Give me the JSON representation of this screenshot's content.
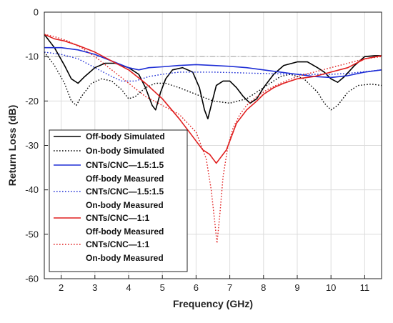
{
  "chart_data": {
    "type": "line",
    "title": "",
    "xlabel": "Frequency (GHz)",
    "ylabel": "Return Loss (dB)",
    "xlim": [
      1.5,
      11.5
    ],
    "ylim": [
      -60,
      0
    ],
    "x_ticks": [
      2,
      3,
      4,
      5,
      6,
      7,
      8,
      9,
      10,
      11
    ],
    "y_ticks": [
      0,
      -10,
      -20,
      -30,
      -40,
      -50,
      -60
    ],
    "grid": true,
    "legend_position": "left-center",
    "reference_line": {
      "y": -10,
      "style": "dash-dot",
      "color": "#aaaaaa"
    },
    "series": [
      {
        "name": "Off-body Simulated",
        "color": "#000000",
        "style": "solid",
        "x": [
          1.5,
          1.8,
          2.1,
          2.3,
          2.5,
          2.7,
          3.0,
          3.3,
          3.6,
          4.0,
          4.3,
          4.5,
          4.7,
          4.8,
          4.95,
          5.1,
          5.3,
          5.6,
          5.9,
          6.1,
          6.25,
          6.35,
          6.45,
          6.6,
          6.8,
          7.0,
          7.2,
          7.4,
          7.6,
          7.8,
          8.0,
          8.3,
          8.6,
          9.0,
          9.3,
          9.6,
          9.8,
          10.0,
          10.2,
          10.4,
          10.7,
          11.0,
          11.3,
          11.5
        ],
        "values": [
          -5,
          -8,
          -12,
          -15,
          -16,
          -14.5,
          -12.5,
          -11.5,
          -11.5,
          -12.5,
          -14,
          -17,
          -21,
          -22,
          -18,
          -15,
          -13,
          -12.5,
          -13.5,
          -17,
          -22,
          -24,
          -21,
          -16.5,
          -15.5,
          -15.5,
          -17,
          -19,
          -20.5,
          -19.5,
          -17,
          -14,
          -12,
          -11.2,
          -11.2,
          -12.5,
          -13.5,
          -15,
          -15.8,
          -14.5,
          -12,
          -10,
          -9.8,
          -9.8
        ]
      },
      {
        "name": "On-body Simulated",
        "color": "#000000",
        "style": "dotted",
        "x": [
          1.5,
          1.8,
          2.1,
          2.3,
          2.45,
          2.6,
          2.9,
          3.2,
          3.5,
          3.8,
          4.0,
          4.2,
          4.5,
          4.8,
          5.1,
          5.5,
          6.0,
          6.5,
          7.0,
          7.5,
          8.0,
          8.5,
          8.8,
          9.2,
          9.6,
          9.8,
          10.0,
          10.2,
          10.5,
          10.8,
          11.2,
          11.5
        ],
        "values": [
          -9,
          -12,
          -16,
          -20,
          -21,
          -19,
          -16,
          -15,
          -15.5,
          -17.5,
          -19.5,
          -19,
          -17,
          -16,
          -16,
          -17,
          -18.5,
          -20,
          -20.5,
          -19.5,
          -17,
          -14.5,
          -14,
          -15,
          -18,
          -20.5,
          -22,
          -21,
          -18,
          -16.5,
          -16.2,
          -16.5
        ]
      },
      {
        "name": "CNTs/CNC—1.5:1.5 Off-body Measured",
        "color": "#1f2fd6",
        "style": "solid",
        "x": [
          1.5,
          2.0,
          2.5,
          3.0,
          3.5,
          4.0,
          4.3,
          4.6,
          5.0,
          5.5,
          6.0,
          6.5,
          7.0,
          7.5,
          8.0,
          8.5,
          9.0,
          9.5,
          10.0,
          10.5,
          11.0,
          11.5
        ],
        "values": [
          -8,
          -8,
          -8.5,
          -9.5,
          -11,
          -12.5,
          -13,
          -12.5,
          -12.3,
          -12,
          -11.8,
          -12,
          -12.2,
          -12.5,
          -13,
          -13.5,
          -14,
          -14.5,
          -14.7,
          -14.3,
          -13.5,
          -13
        ]
      },
      {
        "name": "CNTs/CNC—1.5:1.5 On-body Measured",
        "color": "#1f2fd6",
        "style": "dotted",
        "x": [
          1.5,
          2.0,
          2.5,
          3.0,
          3.5,
          3.8,
          4.2,
          4.6,
          5.0,
          5.5,
          6.0,
          6.5,
          7.0,
          7.5,
          8.0,
          8.5,
          9.0,
          9.5,
          10.0,
          10.5,
          11.0,
          11.5
        ],
        "values": [
          -9,
          -9.5,
          -10.5,
          -12.5,
          -14.5,
          -15.5,
          -15.5,
          -14.5,
          -14,
          -13.5,
          -13.5,
          -13.5,
          -13.6,
          -13.7,
          -13.8,
          -13.9,
          -14,
          -14,
          -14,
          -13.8,
          -13.4,
          -13
        ]
      },
      {
        "name": "CNTs/CNC—1:1 Off-body Measured",
        "color": "#e01e1e",
        "style": "solid",
        "x": [
          1.5,
          1.8,
          2.1,
          2.5,
          3.0,
          3.5,
          4.0,
          4.5,
          5.0,
          5.5,
          5.8,
          6.0,
          6.2,
          6.4,
          6.5,
          6.6,
          6.7,
          6.8,
          6.9,
          7.0,
          7.2,
          7.5,
          7.8,
          8.0,
          8.3,
          8.6,
          9.0,
          9.5,
          10.0,
          10.5,
          11.0,
          11.5
        ],
        "values": [
          -5,
          -6,
          -6.5,
          -7.5,
          -9,
          -11,
          -13,
          -16,
          -19.5,
          -24,
          -27,
          -29,
          -31,
          -32,
          -33,
          -34,
          -33,
          -32,
          -31,
          -29,
          -25,
          -22,
          -20,
          -18.5,
          -17,
          -16,
          -15,
          -14.5,
          -13.5,
          -12.5,
          -10.5,
          -9.8
        ]
      },
      {
        "name": "CNTs/CNC—1:1 On-body Measured",
        "color": "#e01e1e",
        "style": "dotted",
        "x": [
          1.5,
          1.8,
          2.2,
          2.6,
          3.0,
          3.5,
          4.0,
          4.5,
          5.0,
          5.5,
          6.0,
          6.3,
          6.45,
          6.55,
          6.62,
          6.7,
          6.8,
          6.95,
          7.1,
          7.3,
          7.5,
          7.8,
          8.1,
          8.5,
          9.0,
          9.5,
          10.0,
          10.5,
          11.0,
          11.5
        ],
        "values": [
          -5,
          -5.5,
          -6.5,
          -8,
          -10,
          -13,
          -16,
          -19,
          -21,
          -23,
          -27,
          -33,
          -40,
          -47,
          -52,
          -46,
          -37,
          -30,
          -26,
          -23,
          -21,
          -19,
          -17.5,
          -16,
          -14.5,
          -13.5,
          -12.5,
          -11.5,
          -10.5,
          -10
        ]
      }
    ]
  },
  "legend": {
    "entries": [
      [
        "Off-body Simulated"
      ],
      [
        "On-body Simulated"
      ],
      [
        "CNTs/CNC—1.5:1.5",
        "Off-body Measured"
      ],
      [
        "CNTs/CNC—1.5:1.5",
        "On-body Measured"
      ],
      [
        "CNTs/CNC—1:1",
        "Off-body Measured"
      ],
      [
        "CNTs/CNC—1:1",
        "On-body Measured"
      ]
    ]
  }
}
